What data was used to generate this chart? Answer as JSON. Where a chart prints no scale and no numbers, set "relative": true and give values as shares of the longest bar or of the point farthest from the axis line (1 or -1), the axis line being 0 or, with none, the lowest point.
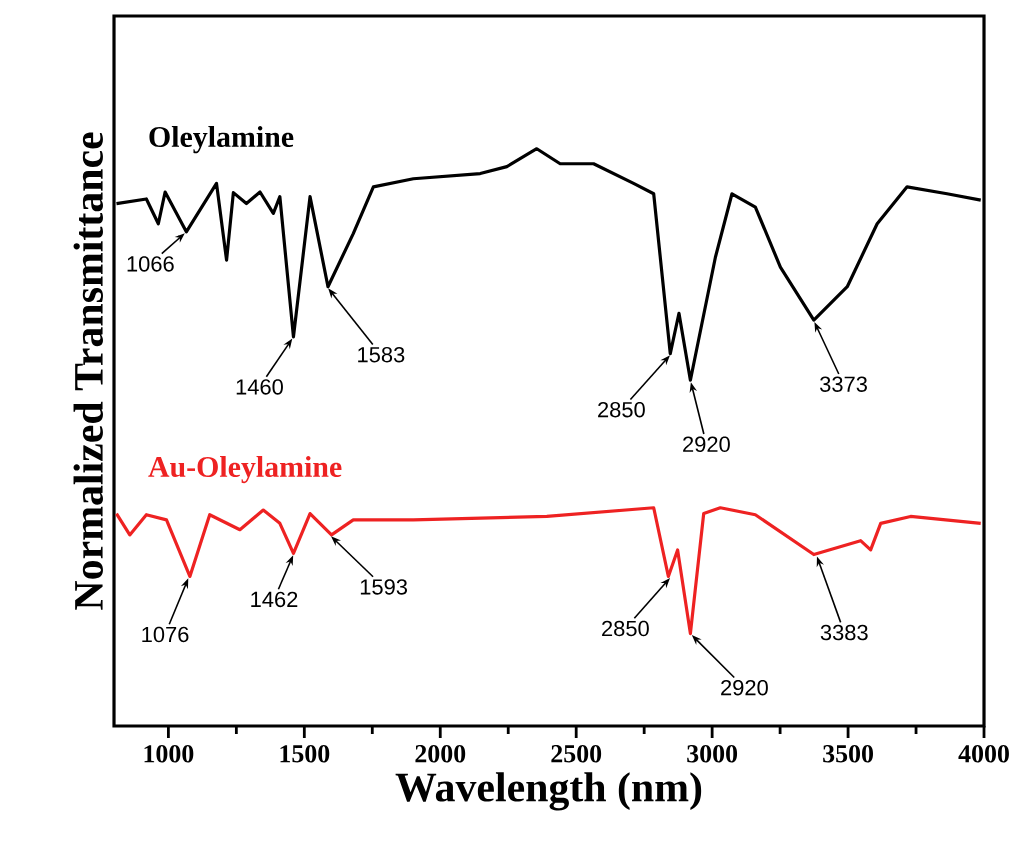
{
  "chart_data": {
    "type": "line",
    "xlabel": "Wavelength (nm)",
    "ylabel": "Normalized Transmittance",
    "relative": true,
    "xlim": [
      800,
      4000
    ],
    "xticks": [
      1000,
      1500,
      2000,
      2500,
      3000,
      3500,
      4000
    ],
    "marker": "none",
    "line_style": "solid",
    "series": [
      {
        "name": "Oleylamine",
        "color": "#000000",
        "x": [
          809,
          919,
          963,
          988,
          1066,
          1177,
          1214,
          1239,
          1287,
          1337,
          1386,
          1410,
          1460,
          1521,
          1587,
          1680,
          1754,
          1901,
          2147,
          2245,
          2355,
          2441,
          2564,
          2711,
          2785,
          2846,
          2878,
          2920,
          3012,
          3073,
          3159,
          3251,
          3374,
          3497,
          3607,
          3717,
          3864,
          3988
        ],
        "values": [
          0.905,
          0.913,
          0.87,
          0.925,
          0.856,
          0.94,
          0.807,
          0.924,
          0.905,
          0.925,
          0.888,
          0.917,
          0.674,
          0.917,
          0.761,
          0.853,
          0.934,
          0.948,
          0.957,
          0.969,
          1.0,
          0.974,
          0.974,
          0.94,
          0.922,
          0.645,
          0.715,
          0.599,
          0.812,
          0.922,
          0.899,
          0.795,
          0.703,
          0.761,
          0.87,
          0.934,
          0.922,
          0.911
        ]
      },
      {
        "name": "Au-Oleylamine",
        "color": "#ee2222",
        "x": [
          809,
          858,
          919,
          993,
          1079,
          1152,
          1263,
          1349,
          1410,
          1460,
          1521,
          1600,
          1680,
          1901,
          2392,
          2785,
          2839,
          2873,
          2920,
          2969,
          3030,
          3159,
          3374,
          3546,
          3583,
          3620,
          3730,
          3988
        ],
        "values": [
          0.368,
          0.331,
          0.366,
          0.357,
          0.259,
          0.366,
          0.34,
          0.374,
          0.351,
          0.299,
          0.368,
          0.331,
          0.357,
          0.357,
          0.363,
          0.378,
          0.259,
          0.305,
          0.16,
          0.368,
          0.378,
          0.366,
          0.297,
          0.321,
          0.305,
          0.351,
          0.363,
          0.351
        ]
      }
    ],
    "annotations": [
      {
        "text": "1066",
        "x": 1066,
        "y": 0.856
      },
      {
        "text": "1460",
        "x": 1460,
        "y": 0.674
      },
      {
        "text": "1583",
        "x": 1583,
        "y": 0.761
      },
      {
        "text": "2850",
        "x": 2850,
        "y": 0.645
      },
      {
        "text": "2920",
        "x": 2920,
        "y": 0.599
      },
      {
        "text": "3373",
        "x": 3373,
        "y": 0.703
      },
      {
        "text": "1076",
        "x": 1076,
        "y": 0.259
      },
      {
        "text": "1462",
        "x": 1462,
        "y": 0.299
      },
      {
        "text": "1593",
        "x": 1593,
        "y": 0.331
      },
      {
        "text": "2850",
        "x": 2850,
        "y": 0.259
      },
      {
        "text": "2920",
        "x": 2920,
        "y": 0.16
      },
      {
        "text": "3383",
        "x": 3383,
        "y": 0.297
      }
    ]
  }
}
